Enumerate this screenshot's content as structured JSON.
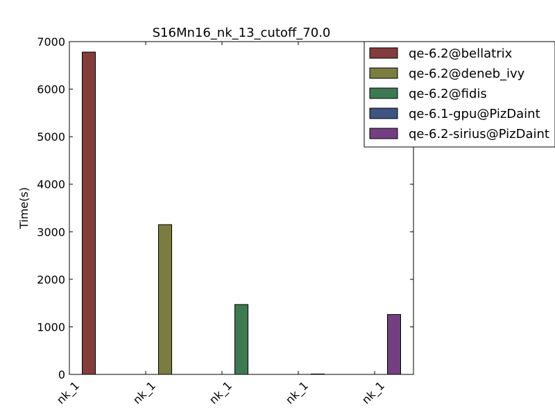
{
  "chart_data": {
    "type": "bar",
    "title": "S16Mn16_nk_13_cutoff_70.0",
    "xlabel": "",
    "ylabel": "Time(s)",
    "ylim": [
      0,
      7000
    ],
    "yticks": [
      0,
      1000,
      2000,
      3000,
      4000,
      5000,
      6000,
      7000
    ],
    "categories": [
      "nk_1",
      "nk_1",
      "nk_1",
      "nk_1",
      "nk_1"
    ],
    "grid": false,
    "legend_position": "top-right",
    "series": [
      {
        "name": "qe-6.2@bellatrix",
        "color": "#843c3c",
        "values": [
          6780,
          0,
          0,
          0,
          0
        ]
      },
      {
        "name": "qe-6.2@deneb_ivy",
        "color": "#7a7d3f",
        "values": [
          0,
          3150,
          0,
          0,
          0
        ]
      },
      {
        "name": "qe-6.2@fidis",
        "color": "#3d7a52",
        "values": [
          0,
          0,
          1470,
          0,
          0
        ]
      },
      {
        "name": "qe-6.1-gpu@PizDaint",
        "color": "#3d5580",
        "values": [
          0,
          0,
          0,
          5,
          0
        ]
      },
      {
        "name": "qe-6.2-sirius@PizDaint",
        "color": "#743f80",
        "values": [
          0,
          0,
          0,
          0,
          1260
        ]
      }
    ]
  }
}
